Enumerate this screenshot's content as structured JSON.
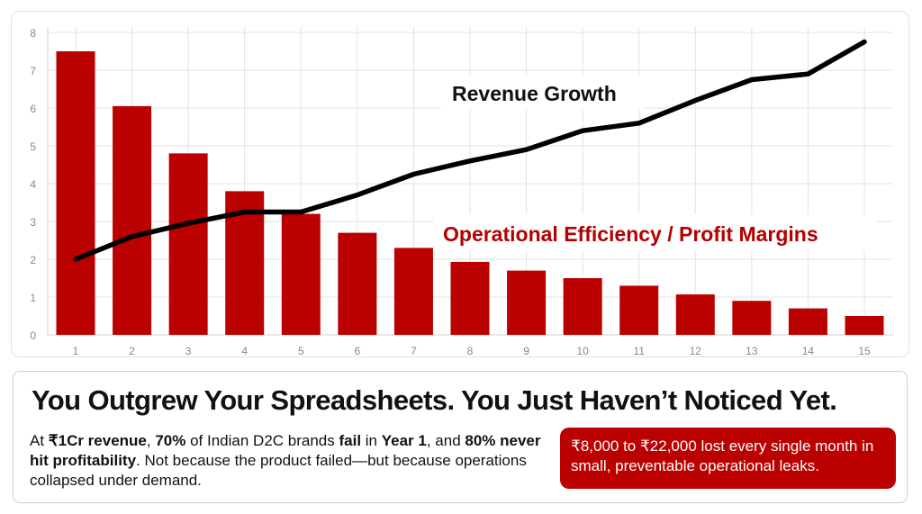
{
  "chart_data": {
    "type": "bar+line",
    "categories": [
      1,
      2,
      3,
      4,
      5,
      6,
      7,
      8,
      9,
      10,
      11,
      12,
      13,
      14,
      15
    ],
    "series": [
      {
        "name": "Operational Efficiency / Profit Margins",
        "kind": "bar",
        "color": "#bb0000",
        "values": [
          7.5,
          6.05,
          4.8,
          3.8,
          3.2,
          2.7,
          2.3,
          1.93,
          1.7,
          1.5,
          1.3,
          1.07,
          0.9,
          0.7,
          0.5
        ]
      },
      {
        "name": "Revenue Growth",
        "kind": "line",
        "color": "#000000",
        "values": [
          2.0,
          2.6,
          2.95,
          3.25,
          3.25,
          3.7,
          4.25,
          4.6,
          4.9,
          5.4,
          5.6,
          6.2,
          6.75,
          6.9,
          7.75
        ]
      }
    ],
    "yticks": [
      0,
      1,
      2,
      3,
      4,
      5,
      6,
      7,
      8
    ],
    "ylim": [
      0,
      8
    ],
    "grid": true,
    "annotations": [
      "Revenue Growth",
      "Operational Efficiency / Profit Margins"
    ]
  },
  "info": {
    "headline": "You Outgrew Your Spreadsheets. You Just Haven’t Noticed Yet.",
    "paragraph": [
      {
        "t": "At ",
        "b": false
      },
      {
        "t": "₹1Cr revenue",
        "b": true
      },
      {
        "t": ", ",
        "b": false
      },
      {
        "t": "70%",
        "b": true
      },
      {
        "t": " of Indian D2C brands ",
        "b": false
      },
      {
        "t": "fail",
        "b": true
      },
      {
        "t": " in ",
        "b": false
      },
      {
        "t": "Year 1",
        "b": true
      },
      {
        "t": ", and ",
        "b": false
      },
      {
        "t": "80% never hit profitability",
        "b": true
      },
      {
        "t": ". Not because the product failed—but because operations collapsed under demand.",
        "b": false
      }
    ],
    "callout": "₹8,000 to ₹22,000 lost every single month in small, preventable operational leaks.",
    "callout_color": "#bb0000"
  }
}
